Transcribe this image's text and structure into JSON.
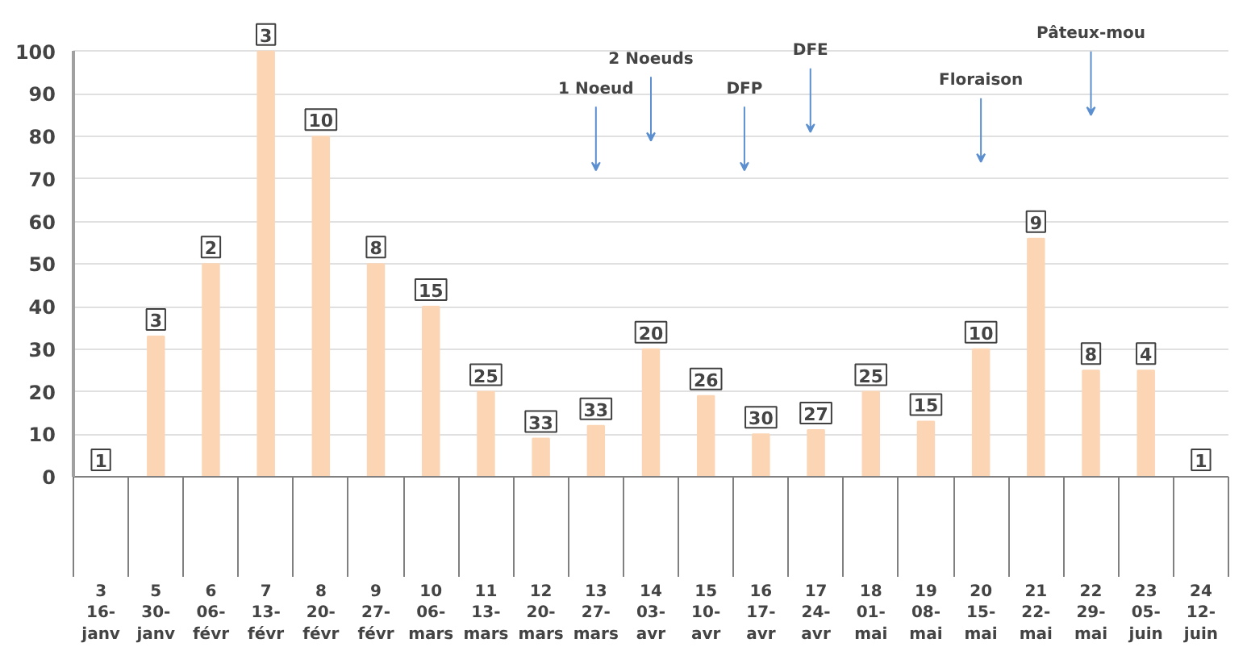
{
  "chart_data": {
    "type": "bar",
    "categories": [
      "3\n16-janv",
      "5\n30-janv",
      "6\n06-févr",
      "7\n13-févr",
      "8\n20-févr",
      "9\n27-févr",
      "10\n06-mars",
      "11\n13-mars",
      "12\n20-mars",
      "13\n27-mars",
      "14\n03-avr",
      "15\n10-avr",
      "16\n17-avr",
      "17\n24-avr",
      "18\n01-mai",
      "19\n08-mai",
      "20\n15-mai",
      "21\n22-mai",
      "22\n29-mai",
      "23\n05-juin",
      "24\n12-juin"
    ],
    "values": [
      0,
      33,
      50,
      100,
      80,
      50,
      40,
      20,
      9,
      12,
      30,
      19,
      10,
      11,
      20,
      13,
      30,
      56,
      25,
      25,
      0
    ],
    "color": "#fcd5b5",
    "ylim": [
      0,
      100
    ],
    "yticks": [
      0,
      10,
      20,
      30,
      40,
      50,
      60,
      70,
      80,
      90,
      100
    ],
    "grid": "y",
    "annotations": [
      {
        "text": "1",
        "x": "3\n16-janv",
        "y": 0
      },
      {
        "text": "3",
        "x": "5\n30-janv",
        "y": 33
      },
      {
        "text": "2",
        "x": "6\n06-févr",
        "y": 50
      },
      {
        "text": "3",
        "x": "7\n13-févr",
        "y": 100
      },
      {
        "text": "10",
        "x": "8\n20-févr",
        "y": 80
      },
      {
        "text": "8",
        "x": "9\n27-févr",
        "y": 50
      },
      {
        "text": "15",
        "x": "10\n06-mars",
        "y": 40
      },
      {
        "text": "25",
        "x": "11\n13-mars",
        "y": 20
      },
      {
        "text": "33",
        "x": "12\n20-mars",
        "y": 9
      },
      {
        "text": "33",
        "x": "13\n27-mars",
        "y": 12
      },
      {
        "text": "20",
        "x": "14\n03-avr",
        "y": 30
      },
      {
        "text": "26",
        "x": "15\n10-avr",
        "y": 19
      },
      {
        "text": "30",
        "x": "16\n17-avr",
        "y": 10
      },
      {
        "text": "27",
        "x": "17\n24-avr",
        "y": 11
      },
      {
        "text": "25",
        "x": "18\n01-mai",
        "y": 20
      },
      {
        "text": "15",
        "x": "19\n08-mai",
        "y": 13
      },
      {
        "text": "10",
        "x": "20\n15-mai",
        "y": 30
      },
      {
        "text": "9",
        "x": "21\n22-mai",
        "y": 56
      },
      {
        "text": "8",
        "x": "22\n29-mai",
        "y": 25
      },
      {
        "text": "4",
        "x": "23\n05-juin",
        "y": 25
      },
      {
        "text": "1",
        "x": "24\n12-juin",
        "y": 0
      },
      "1 Noeud",
      "2 Noeuds",
      "DFP",
      "DFE",
      "Floraison",
      "Pâteux-mou"
    ]
  }
}
